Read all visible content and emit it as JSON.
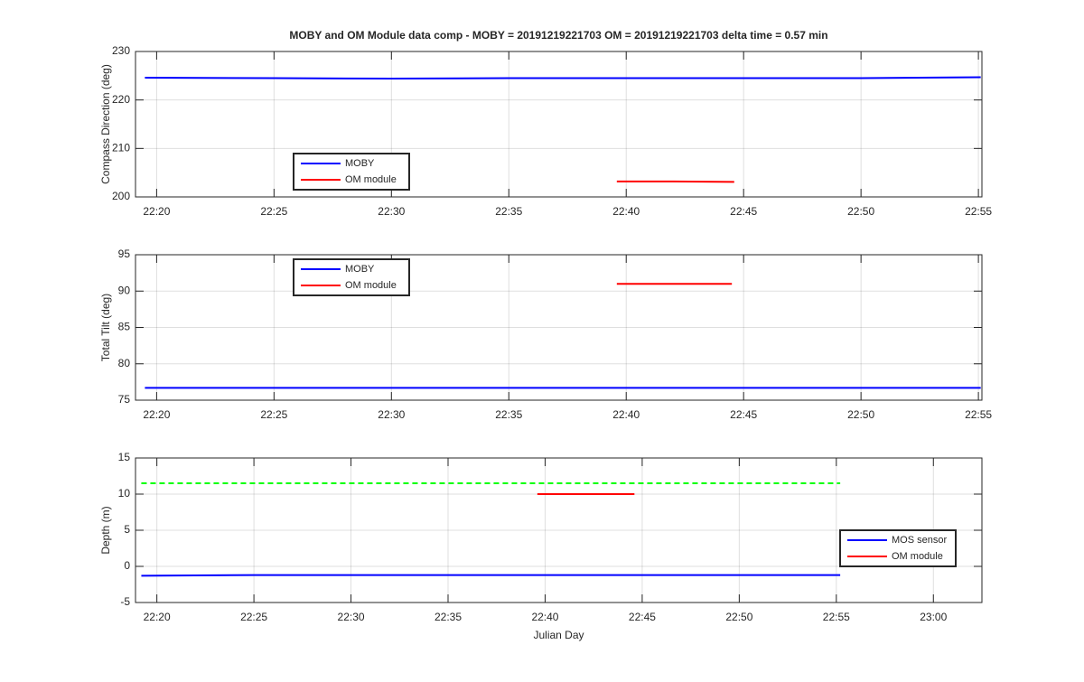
{
  "chart_data": [
    {
      "type": "line",
      "title": "MOBY and OM Module data comp - MOBY = 20191219221703 OM = 20191219221703 delta time = 0.57 min",
      "ylabel": "Compass Direction (deg)",
      "xlim": [
        1339.1,
        1375.15
      ],
      "ylim": [
        200,
        230
      ],
      "xticks": [
        {
          "value": 1340,
          "label": "22:20"
        },
        {
          "value": 1345,
          "label": "22:25"
        },
        {
          "value": 1350,
          "label": "22:30"
        },
        {
          "value": 1355,
          "label": "22:35"
        },
        {
          "value": 1360,
          "label": "22:40"
        },
        {
          "value": 1365,
          "label": "22:45"
        },
        {
          "value": 1370,
          "label": "22:50"
        },
        {
          "value": 1375,
          "label": "22:55"
        }
      ],
      "yticks": [
        200,
        210,
        220,
        230
      ],
      "grid": true,
      "legend_location": "southwest",
      "series": [
        {
          "name": "MOBY",
          "color": "#0000ff",
          "x": [
            1339.5,
            1345,
            1350,
            1355,
            1360,
            1365,
            1370,
            1375.1
          ],
          "values": [
            224.6,
            224.5,
            224.4,
            224.5,
            224.5,
            224.5,
            224.5,
            224.7
          ]
        },
        {
          "name": "OM module",
          "color": "#ff0000",
          "x": [
            1359.6,
            1362,
            1364.6
          ],
          "values": [
            203.2,
            203.2,
            203.1
          ]
        }
      ]
    },
    {
      "type": "line",
      "ylabel": "Total Tilt (deg)",
      "xlim": [
        1339.1,
        1375.15
      ],
      "ylim": [
        75,
        95
      ],
      "xticks": [
        {
          "value": 1340,
          "label": "22:20"
        },
        {
          "value": 1345,
          "label": "22:25"
        },
        {
          "value": 1350,
          "label": "22:30"
        },
        {
          "value": 1355,
          "label": "22:35"
        },
        {
          "value": 1360,
          "label": "22:40"
        },
        {
          "value": 1365,
          "label": "22:45"
        },
        {
          "value": 1370,
          "label": "22:50"
        },
        {
          "value": 1375,
          "label": "22:55"
        }
      ],
      "yticks": [
        75,
        80,
        85,
        90,
        95
      ],
      "grid": true,
      "legend_location": "northwest",
      "series": [
        {
          "name": "MOBY",
          "color": "#0000ff",
          "x": [
            1339.5,
            1345,
            1350,
            1355,
            1360,
            1365,
            1370,
            1375.1
          ],
          "values": [
            76.7,
            76.7,
            76.7,
            76.7,
            76.7,
            76.7,
            76.7,
            76.7
          ]
        },
        {
          "name": "OM module",
          "color": "#ff0000",
          "x": [
            1359.6,
            1362,
            1364.5
          ],
          "values": [
            91.0,
            91.0,
            91.0
          ]
        }
      ]
    },
    {
      "type": "line",
      "ylabel": "Depth (m)",
      "xlabel": "Julian Day",
      "xlim": [
        1338.9,
        1382.5
      ],
      "ylim": [
        -5,
        15
      ],
      "xticks": [
        {
          "value": 1340,
          "label": "22:20"
        },
        {
          "value": 1345,
          "label": "22:25"
        },
        {
          "value": 1350,
          "label": "22:30"
        },
        {
          "value": 1355,
          "label": "22:35"
        },
        {
          "value": 1360,
          "label": "22:40"
        },
        {
          "value": 1365,
          "label": "22:45"
        },
        {
          "value": 1370,
          "label": "22:50"
        },
        {
          "value": 1375,
          "label": "22:55"
        },
        {
          "value": 1380,
          "label": "23:00"
        }
      ],
      "yticks": [
        -5,
        0,
        5,
        10,
        15
      ],
      "grid": true,
      "legend_location": "east",
      "series": [
        {
          "color": "#00ff00",
          "dash": true,
          "x": [
            1339.2,
            1375.2
          ],
          "values": [
            11.5,
            11.5
          ]
        },
        {
          "name": "MOS sensor",
          "color": "#0000ff",
          "x": [
            1339.2,
            1345,
            1350,
            1355,
            1360,
            1365,
            1370,
            1375.2
          ],
          "values": [
            -1.3,
            -1.2,
            -1.2,
            -1.2,
            -1.2,
            -1.2,
            -1.2,
            -1.2
          ]
        },
        {
          "name": "OM module",
          "color": "#ff0000",
          "x": [
            1359.6,
            1362,
            1364.6
          ],
          "values": [
            10.0,
            10.0,
            10.0
          ]
        }
      ]
    }
  ]
}
